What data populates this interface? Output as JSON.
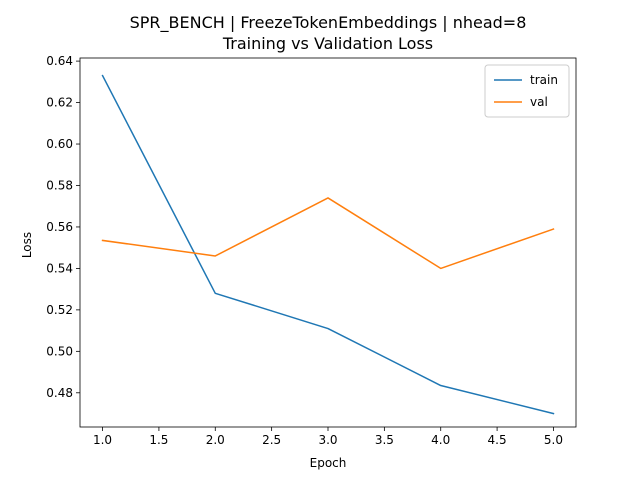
{
  "chart_data": {
    "type": "line",
    "title": "SPR_BENCH | FreezeTokenEmbeddings | nhead=8",
    "subtitle": "Training vs Validation Loss",
    "xlabel": "Epoch",
    "ylabel": "Loss",
    "x": [
      1.0,
      2.0,
      3.0,
      4.0,
      5.0
    ],
    "xlim": [
      0.8,
      5.2
    ],
    "ylim": [
      0.4635,
      0.6415
    ],
    "xticks": [
      1.0,
      1.5,
      2.0,
      2.5,
      3.0,
      3.5,
      4.0,
      4.5,
      5.0
    ],
    "xtick_labels": [
      "1.0",
      "1.5",
      "2.0",
      "2.5",
      "3.0",
      "3.5",
      "4.0",
      "4.5",
      "5.0"
    ],
    "yticks": [
      0.48,
      0.5,
      0.52,
      0.54,
      0.56,
      0.58,
      0.6,
      0.62,
      0.64
    ],
    "ytick_labels": [
      "0.48",
      "0.50",
      "0.52",
      "0.54",
      "0.56",
      "0.58",
      "0.60",
      "0.62",
      "0.64"
    ],
    "grid": false,
    "legend_position": "top-right",
    "series": [
      {
        "name": "train",
        "color": "#1f77b4",
        "values": [
          0.633,
          0.528,
          0.511,
          0.4835,
          0.47
        ]
      },
      {
        "name": "val",
        "color": "#ff7f0e",
        "values": [
          0.5535,
          0.546,
          0.574,
          0.54,
          0.559
        ]
      }
    ]
  }
}
